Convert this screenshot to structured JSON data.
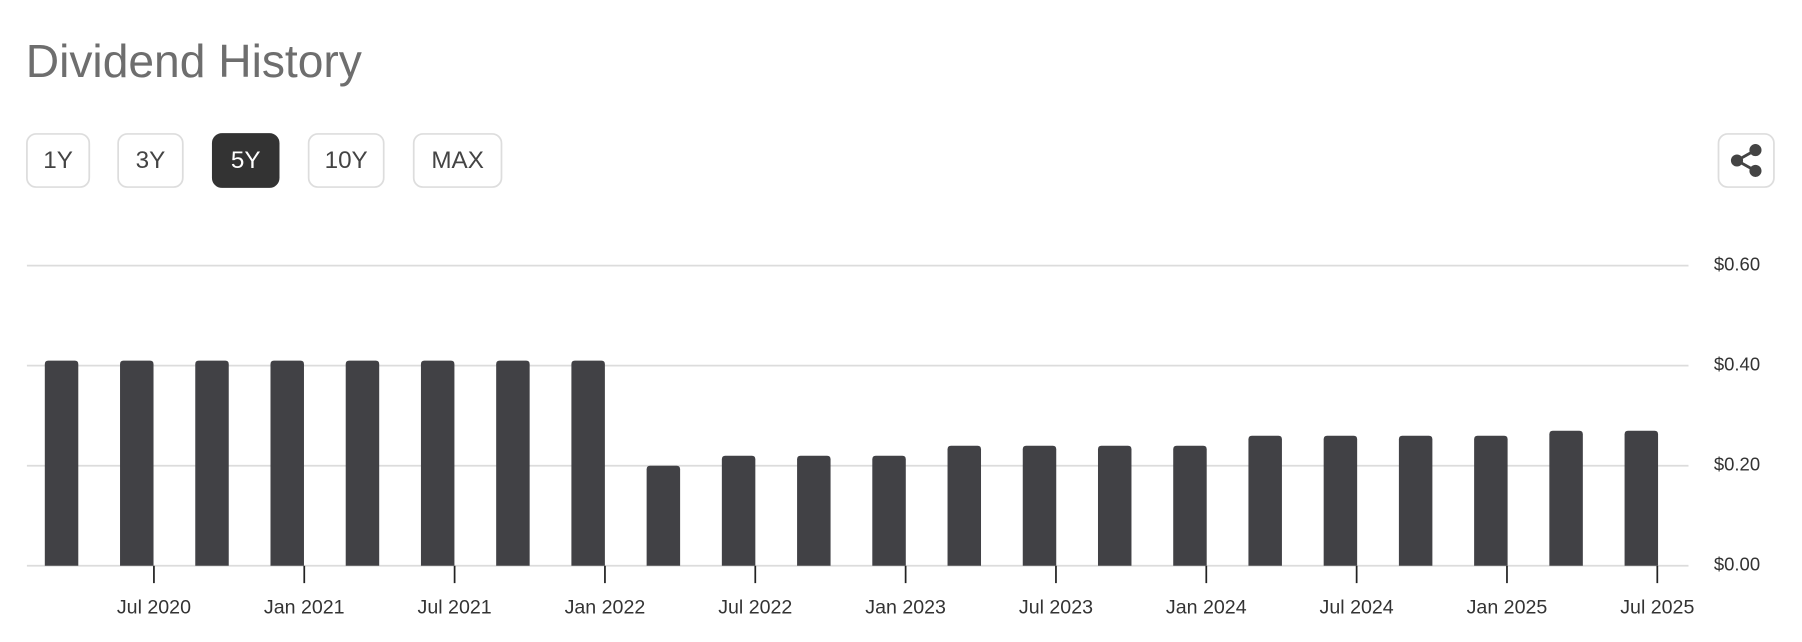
{
  "title": "Dividend History",
  "range_buttons": [
    "1Y",
    "3Y",
    "5Y",
    "10Y",
    "MAX"
  ],
  "active_range": 2,
  "chart_data": {
    "type": "bar",
    "categories": [
      null,
      null,
      null,
      null,
      null,
      null,
      null,
      null,
      null,
      null,
      null,
      null,
      null,
      null,
      null,
      null,
      null,
      null,
      null,
      null,
      null,
      null
    ],
    "values": [
      0.41,
      0.41,
      0.41,
      0.41,
      0.41,
      0.41,
      0.41,
      0.41,
      0.2,
      0.22,
      0.22,
      0.22,
      0.24,
      0.24,
      0.24,
      0.24,
      0.26,
      0.26,
      0.26,
      0.26,
      0.27,
      0.27
    ],
    "color": "#414145",
    "ylim": [
      0,
      0.6
    ],
    "yticks": [
      {
        "value": 0,
        "label": "$0.00"
      },
      {
        "value": 0.2,
        "label": "$0.20"
      },
      {
        "value": 0.4,
        "label": "$0.40"
      },
      {
        "value": 0.6,
        "label": "$0.60"
      }
    ],
    "xtick_labels": [
      "Jul 2020",
      "Jan 2021",
      "Jul 2021",
      "Jan 2022",
      "Jul 2022",
      "Jan 2023",
      "Jul 2023",
      "Jan 2024",
      "Jul 2024",
      "Jan 2025",
      "Jul 2025"
    ],
    "grid": true
  }
}
